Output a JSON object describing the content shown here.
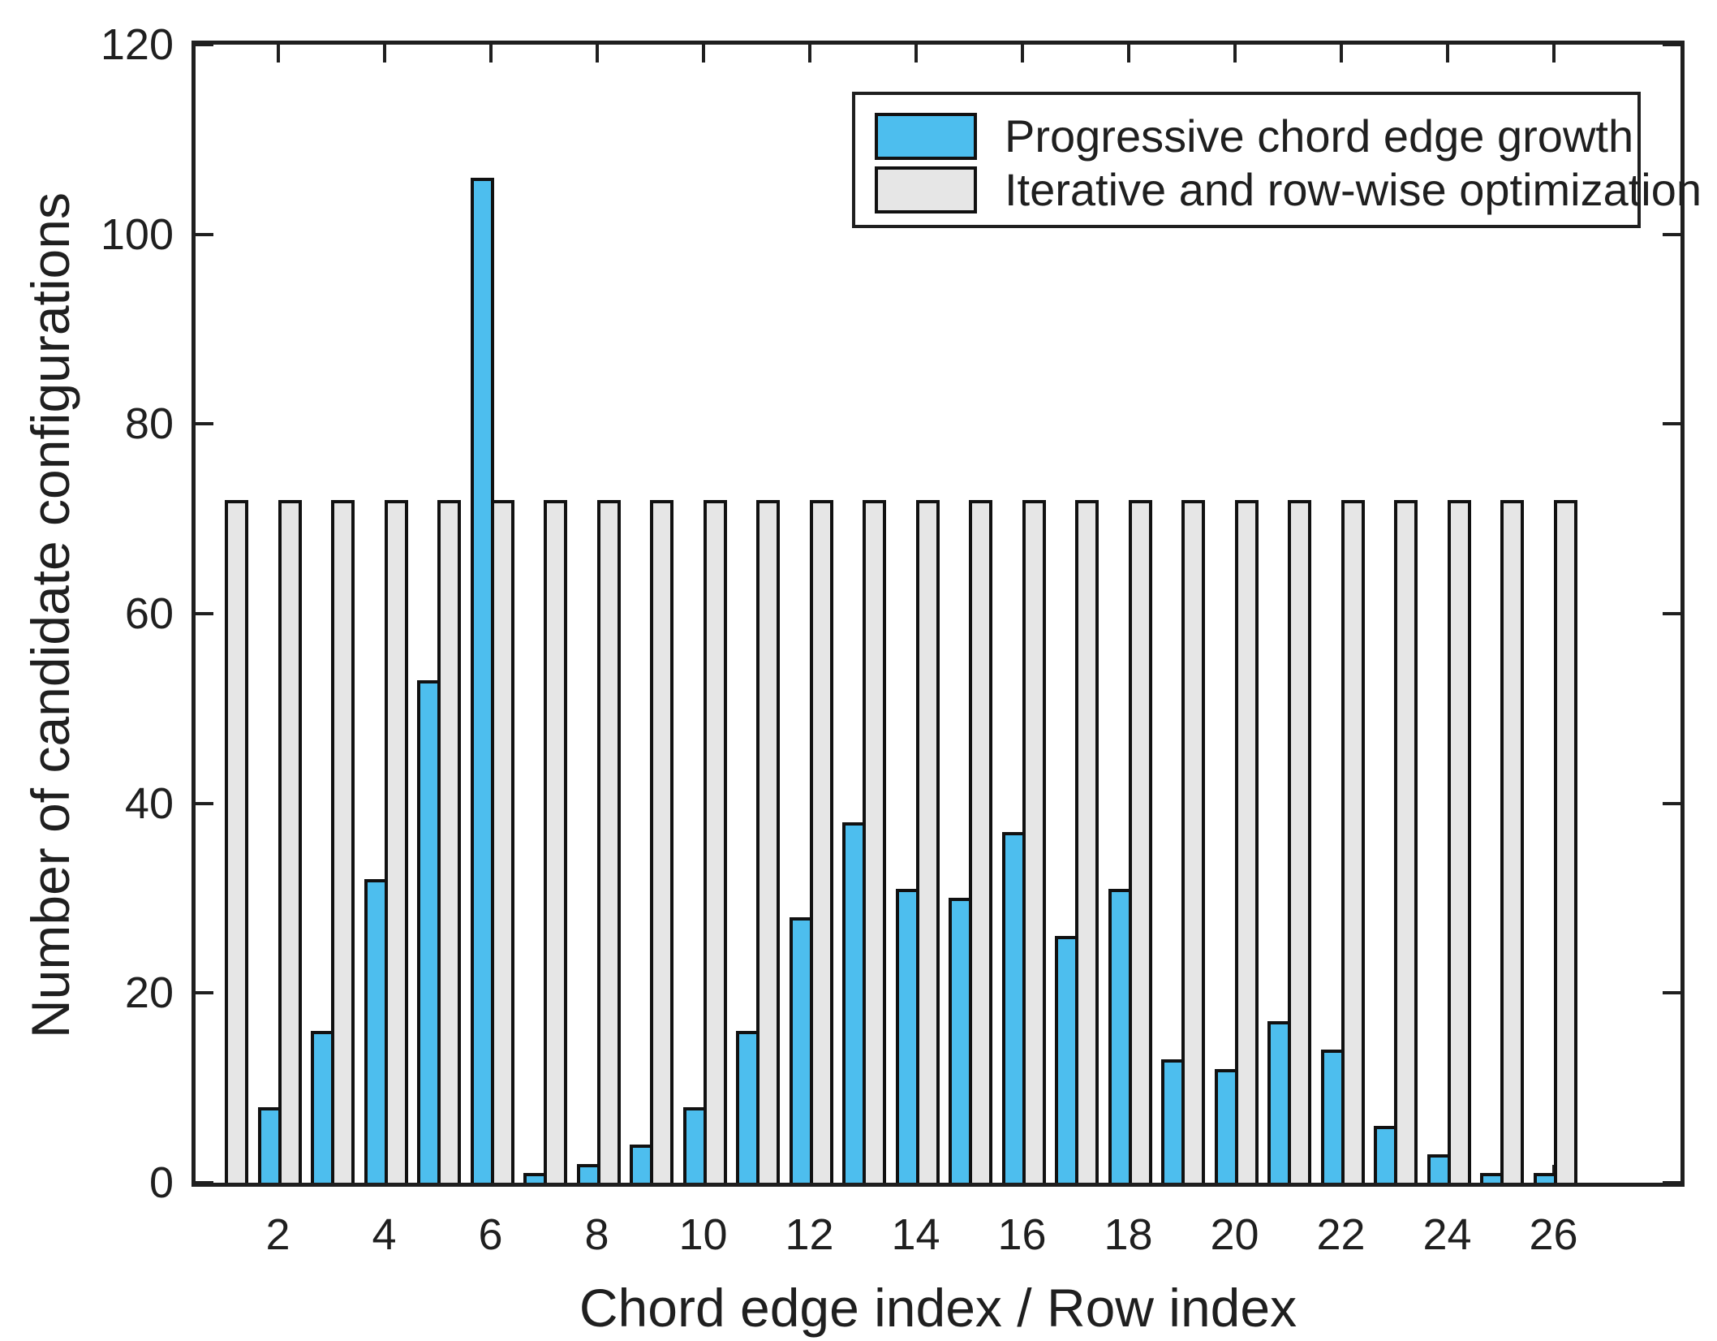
{
  "figure": {
    "background": "#ffffff",
    "axis_color": "#1f1f1f",
    "bar_edge_color": "#111111"
  },
  "chart_data": {
    "type": "bar",
    "title": "",
    "xlabel": "Chord edge index / Row index",
    "ylabel": "Number of candidate configurations",
    "categories": [
      1,
      2,
      3,
      4,
      5,
      6,
      7,
      8,
      9,
      10,
      11,
      12,
      13,
      14,
      15,
      16,
      17,
      18,
      19,
      20,
      21,
      22,
      23,
      24,
      25,
      26
    ],
    "series": [
      {
        "name": "Progressive chord edge growth",
        "color": "#4DBEEE",
        "values": [
          0,
          8,
          16,
          32,
          53,
          106,
          1,
          2,
          4,
          8,
          16,
          28,
          38,
          31,
          30,
          37,
          26,
          31,
          13,
          12,
          17,
          14,
          6,
          3,
          1,
          1
        ]
      },
      {
        "name": "Iterative and row-wise optimization",
        "color": "#E6E6E6",
        "values": [
          72,
          72,
          72,
          72,
          72,
          72,
          72,
          72,
          72,
          72,
          72,
          72,
          72,
          72,
          72,
          72,
          72,
          72,
          72,
          72,
          72,
          72,
          72,
          72,
          72,
          72
        ]
      }
    ],
    "ylim": [
      0,
      120
    ],
    "y_ticks": [
      0,
      20,
      40,
      60,
      80,
      100,
      120
    ],
    "x_ticks": [
      2,
      4,
      6,
      8,
      10,
      12,
      14,
      16,
      18,
      20,
      22,
      24,
      26
    ],
    "grid": "off",
    "legend_position": "northeast",
    "bar_layout": "grouped"
  }
}
